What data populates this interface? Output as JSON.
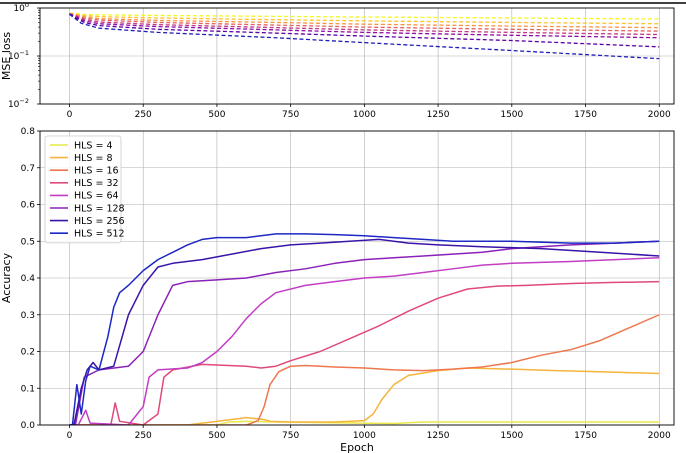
{
  "chart_data": [
    {
      "type": "line",
      "ylabel": "MSE loss",
      "xlabel": "",
      "yscale": "log",
      "ylim": [
        0.01,
        1
      ],
      "xlim": [
        -100,
        2050
      ],
      "xticks": [
        "0",
        "250",
        "500",
        "750",
        "1000",
        "1250",
        "1500",
        "1750",
        "2000"
      ],
      "yticks": [
        "10^-2",
        "10^-1",
        "10^0"
      ],
      "grid": true,
      "line_style": "dashed",
      "series": [
        {
          "color": "#f0f921",
          "points": [
            [
              0,
              0.78
            ],
            [
              50,
              0.74
            ],
            [
              100,
              0.72
            ],
            [
              300,
              0.7
            ],
            [
              700,
              0.67
            ],
            [
              1000,
              0.65
            ],
            [
              1500,
              0.62
            ],
            [
              2000,
              0.59
            ]
          ]
        },
        {
          "color": "#fdc328",
          "points": [
            [
              0,
              0.77
            ],
            [
              50,
              0.7
            ],
            [
              100,
              0.66
            ],
            [
              300,
              0.62
            ],
            [
              700,
              0.57
            ],
            [
              1000,
              0.54
            ],
            [
              1500,
              0.5
            ],
            [
              2000,
              0.47
            ]
          ]
        },
        {
          "color": "#f89441",
          "points": [
            [
              0,
              0.77
            ],
            [
              50,
              0.66
            ],
            [
              100,
              0.6
            ],
            [
              300,
              0.55
            ],
            [
              700,
              0.5
            ],
            [
              1000,
              0.46
            ],
            [
              1500,
              0.42
            ],
            [
              2000,
              0.39
            ]
          ]
        },
        {
          "color": "#e16462",
          "points": [
            [
              0,
              0.76
            ],
            [
              50,
              0.62
            ],
            [
              100,
              0.56
            ],
            [
              300,
              0.5
            ],
            [
              700,
              0.44
            ],
            [
              1000,
              0.4
            ],
            [
              1500,
              0.36
            ],
            [
              2000,
              0.33
            ]
          ]
        },
        {
          "color": "#bf3984",
          "points": [
            [
              0,
              0.76
            ],
            [
              50,
              0.58
            ],
            [
              100,
              0.51
            ],
            [
              300,
              0.45
            ],
            [
              700,
              0.39
            ],
            [
              1000,
              0.35
            ],
            [
              1500,
              0.31
            ],
            [
              2000,
              0.28
            ]
          ]
        },
        {
          "color": "#900da4",
          "points": [
            [
              0,
              0.75
            ],
            [
              50,
              0.54
            ],
            [
              100,
              0.47
            ],
            [
              300,
              0.41
            ],
            [
              700,
              0.35
            ],
            [
              1000,
              0.31
            ],
            [
              1500,
              0.27
            ],
            [
              2000,
              0.24
            ]
          ]
        },
        {
          "color": "#5c01a6",
          "points": [
            [
              0,
              0.74
            ],
            [
              50,
              0.5
            ],
            [
              100,
              0.43
            ],
            [
              300,
              0.36
            ],
            [
              700,
              0.3
            ],
            [
              1000,
              0.26
            ],
            [
              1500,
              0.21
            ],
            [
              2000,
              0.155
            ]
          ]
        },
        {
          "color": "#1f1fb5",
          "points": [
            [
              0,
              0.74
            ],
            [
              40,
              0.48
            ],
            [
              100,
              0.38
            ],
            [
              300,
              0.31
            ],
            [
              700,
              0.24
            ],
            [
              1000,
              0.19
            ],
            [
              1500,
              0.13
            ],
            [
              2000,
              0.088
            ]
          ]
        }
      ]
    },
    {
      "type": "line",
      "xlabel": "Epoch",
      "ylabel": "Accuracy",
      "ylim": [
        0,
        0.8
      ],
      "xlim": [
        -100,
        2050
      ],
      "xticks": [
        "0",
        "250",
        "500",
        "750",
        "1000",
        "1250",
        "1500",
        "1750",
        "2000"
      ],
      "yticks": [
        "0.0",
        "0.1",
        "0.2",
        "0.3",
        "0.4",
        "0.5",
        "0.6",
        "0.7",
        "0.8"
      ],
      "grid": true,
      "legend_position": "top-left",
      "series": [
        {
          "name": "HLS = 4",
          "color": "#e8e84a",
          "points": [
            [
              0,
              0
            ],
            [
              500,
              0
            ],
            [
              540,
              0.008
            ],
            [
              600,
              0.01
            ],
            [
              700,
              0.008
            ],
            [
              1100,
              0.004
            ],
            [
              1200,
              0.008
            ],
            [
              1500,
              0.008
            ],
            [
              2000,
              0.008
            ]
          ]
        },
        {
          "name": "HLS = 8",
          "color": "#f5b43a",
          "points": [
            [
              0,
              0
            ],
            [
              400,
              0
            ],
            [
              450,
              0.005
            ],
            [
              500,
              0.01
            ],
            [
              550,
              0.015
            ],
            [
              600,
              0.02
            ],
            [
              660,
              0.015
            ],
            [
              680,
              0.01
            ],
            [
              750,
              0.008
            ],
            [
              900,
              0.008
            ],
            [
              1000,
              0.012
            ],
            [
              1030,
              0.03
            ],
            [
              1060,
              0.07
            ],
            [
              1100,
              0.11
            ],
            [
              1150,
              0.135
            ],
            [
              1250,
              0.148
            ],
            [
              1350,
              0.155
            ],
            [
              1500,
              0.152
            ],
            [
              1650,
              0.148
            ],
            [
              1800,
              0.145
            ],
            [
              2000,
              0.14
            ]
          ]
        },
        {
          "name": "HLS = 16",
          "color": "#ee7750",
          "points": [
            [
              0,
              0
            ],
            [
              600,
              0
            ],
            [
              640,
              0.012
            ],
            [
              660,
              0.05
            ],
            [
              680,
              0.11
            ],
            [
              710,
              0.145
            ],
            [
              750,
              0.16
            ],
            [
              800,
              0.162
            ],
            [
              900,
              0.158
            ],
            [
              1000,
              0.155
            ],
            [
              1100,
              0.15
            ],
            [
              1200,
              0.148
            ],
            [
              1300,
              0.152
            ],
            [
              1400,
              0.158
            ],
            [
              1500,
              0.17
            ],
            [
              1600,
              0.19
            ],
            [
              1700,
              0.205
            ],
            [
              1800,
              0.23
            ],
            [
              1900,
              0.265
            ],
            [
              2000,
              0.3
            ]
          ]
        },
        {
          "name": "HLS = 32",
          "color": "#e04a7a",
          "points": [
            [
              0,
              0
            ],
            [
              140,
              0
            ],
            [
              155,
              0.06
            ],
            [
              170,
              0.01
            ],
            [
              250,
              0
            ],
            [
              300,
              0.03
            ],
            [
              320,
              0.13
            ],
            [
              350,
              0.15
            ],
            [
              450,
              0.165
            ],
            [
              600,
              0.16
            ],
            [
              650,
              0.155
            ],
            [
              700,
              0.16
            ],
            [
              750,
              0.175
            ],
            [
              850,
              0.2
            ],
            [
              950,
              0.235
            ],
            [
              1050,
              0.27
            ],
            [
              1150,
              0.31
            ],
            [
              1250,
              0.345
            ],
            [
              1350,
              0.37
            ],
            [
              1450,
              0.378
            ],
            [
              1550,
              0.38
            ],
            [
              1700,
              0.385
            ],
            [
              1850,
              0.388
            ],
            [
              2000,
              0.39
            ]
          ]
        },
        {
          "name": "HLS = 64",
          "color": "#c33dc4",
          "points": [
            [
              0,
              0
            ],
            [
              30,
              0
            ],
            [
              55,
              0.04
            ],
            [
              70,
              0.005
            ],
            [
              200,
              0
            ],
            [
              250,
              0.05
            ],
            [
              270,
              0.13
            ],
            [
              300,
              0.15
            ],
            [
              400,
              0.155
            ],
            [
              450,
              0.17
            ],
            [
              500,
              0.2
            ],
            [
              550,
              0.24
            ],
            [
              600,
              0.29
            ],
            [
              650,
              0.33
            ],
            [
              700,
              0.36
            ],
            [
              800,
              0.38
            ],
            [
              900,
              0.39
            ],
            [
              1000,
              0.4
            ],
            [
              1100,
              0.405
            ],
            [
              1200,
              0.415
            ],
            [
              1300,
              0.425
            ],
            [
              1400,
              0.435
            ],
            [
              1500,
              0.44
            ],
            [
              1700,
              0.445
            ],
            [
              2000,
              0.455
            ]
          ]
        },
        {
          "name": "HLS = 128",
          "color": "#8b22b8",
          "points": [
            [
              0,
              0
            ],
            [
              20,
              0
            ],
            [
              50,
              0.13
            ],
            [
              100,
              0.15
            ],
            [
              200,
              0.16
            ],
            [
              250,
              0.2
            ],
            [
              300,
              0.3
            ],
            [
              350,
              0.38
            ],
            [
              400,
              0.39
            ],
            [
              500,
              0.395
            ],
            [
              600,
              0.4
            ],
            [
              700,
              0.415
            ],
            [
              800,
              0.425
            ],
            [
              900,
              0.44
            ],
            [
              1000,
              0.45
            ],
            [
              1100,
              0.455
            ],
            [
              1200,
              0.46
            ],
            [
              1300,
              0.465
            ],
            [
              1400,
              0.47
            ],
            [
              1500,
              0.48
            ],
            [
              1700,
              0.49
            ],
            [
              1850,
              0.495
            ],
            [
              2000,
              0.5
            ]
          ]
        },
        {
          "name": "HLS = 256",
          "color": "#3a14a8",
          "points": [
            [
              0,
              0
            ],
            [
              15,
              0
            ],
            [
              40,
              0.1
            ],
            [
              60,
              0.15
            ],
            [
              80,
              0.17
            ],
            [
              100,
              0.15
            ],
            [
              150,
              0.16
            ],
            [
              200,
              0.3
            ],
            [
              250,
              0.38
            ],
            [
              300,
              0.43
            ],
            [
              350,
              0.44
            ],
            [
              450,
              0.45
            ],
            [
              550,
              0.465
            ],
            [
              650,
              0.48
            ],
            [
              750,
              0.49
            ],
            [
              850,
              0.495
            ],
            [
              950,
              0.5
            ],
            [
              1050,
              0.505
            ],
            [
              1150,
              0.495
            ],
            [
              1250,
              0.49
            ],
            [
              1400,
              0.485
            ],
            [
              1600,
              0.48
            ],
            [
              1800,
              0.47
            ],
            [
              1900,
              0.465
            ],
            [
              2000,
              0.46
            ]
          ]
        },
        {
          "name": "HLS = 512",
          "color": "#1d28c5",
          "points": [
            [
              0,
              0
            ],
            [
              10,
              0
            ],
            [
              25,
              0.11
            ],
            [
              40,
              0.03
            ],
            [
              55,
              0.12
            ],
            [
              70,
              0.16
            ],
            [
              100,
              0.15
            ],
            [
              130,
              0.24
            ],
            [
              150,
              0.32
            ],
            [
              170,
              0.36
            ],
            [
              200,
              0.38
            ],
            [
              250,
              0.42
            ],
            [
              300,
              0.45
            ],
            [
              350,
              0.47
            ],
            [
              400,
              0.49
            ],
            [
              450,
              0.505
            ],
            [
              500,
              0.51
            ],
            [
              600,
              0.51
            ],
            [
              700,
              0.52
            ],
            [
              800,
              0.52
            ],
            [
              900,
              0.518
            ],
            [
              1000,
              0.515
            ],
            [
              1100,
              0.51
            ],
            [
              1200,
              0.505
            ],
            [
              1300,
              0.5
            ],
            [
              1500,
              0.5
            ],
            [
              1700,
              0.495
            ],
            [
              1850,
              0.495
            ],
            [
              2000,
              0.5
            ]
          ]
        }
      ]
    }
  ]
}
